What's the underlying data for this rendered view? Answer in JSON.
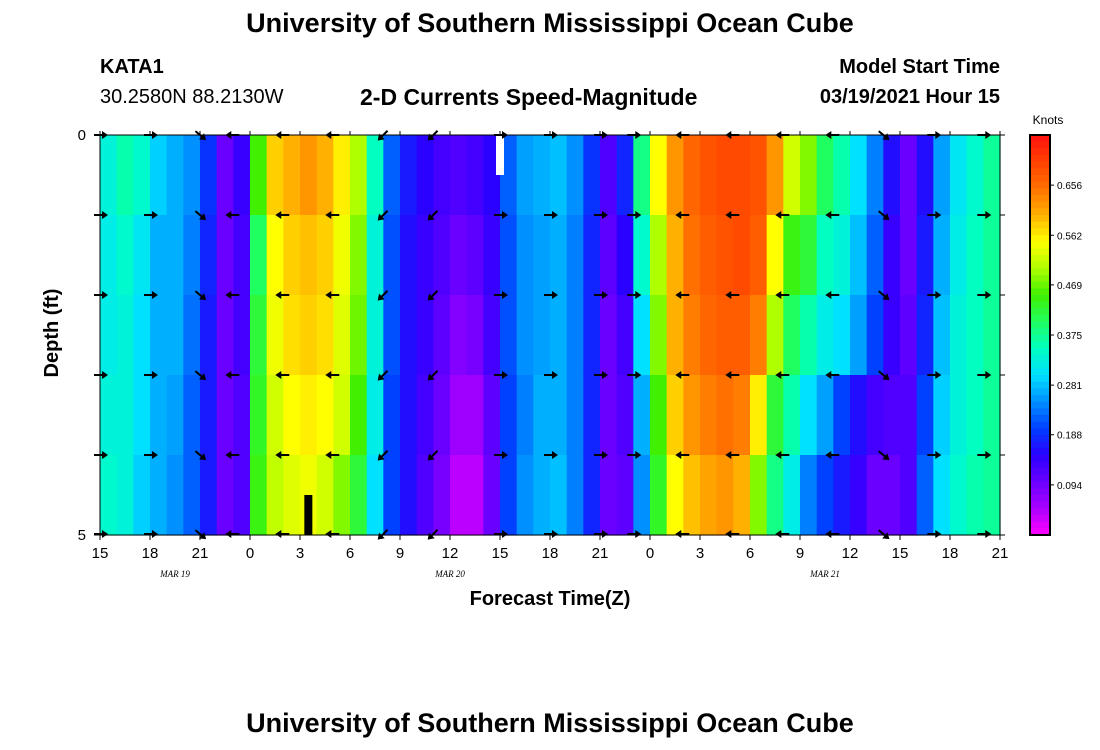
{
  "page": {
    "title": "University of Southern Mississippi Ocean Cube",
    "footer_title": "University of Southern Mississippi Ocean Cube",
    "station_id": "KATA1",
    "station_coords": "30.2580N 88.2130W",
    "model_start_label": "Model Start Time",
    "model_start_value": "03/19/2021 Hour 15"
  },
  "chart_data": {
    "type": "heatmap",
    "title": "2-D Currents Speed-Magnitude",
    "xlabel": "Forecast Time(Z)",
    "ylabel": "Depth (ft)",
    "x_tick_labels": [
      "15",
      "18",
      "21",
      "0",
      "3",
      "6",
      "9",
      "12",
      "15",
      "18",
      "21",
      "0",
      "3",
      "6",
      "9",
      "12",
      "15",
      "18",
      "21"
    ],
    "x_tick_hours": [
      0,
      3,
      6,
      9,
      12,
      15,
      18,
      21,
      24,
      27,
      30,
      33,
      36,
      39,
      42,
      45,
      48,
      51,
      54
    ],
    "date_labels": [
      {
        "text": "MAR 19",
        "hour": 4.5
      },
      {
        "text": "MAR 20",
        "hour": 21
      },
      {
        "text": "MAR 21",
        "hour": 43.5
      }
    ],
    "xlim": [
      0,
      54
    ],
    "y_tick_labels": [
      "0",
      "5"
    ],
    "ylim": [
      0,
      5
    ],
    "colorbar": {
      "title": "Knots",
      "ticks": [
        "0.656",
        "0.562",
        "0.469",
        "0.375",
        "0.281",
        "0.188",
        "0.094"
      ],
      "tick_values": [
        0.656,
        0.562,
        0.469,
        0.375,
        0.281,
        0.188,
        0.094
      ],
      "range": [
        0.0,
        0.75
      ],
      "colors": [
        "#ff00ff",
        "#aa00ff",
        "#6a00ff",
        "#2a00ff",
        "#0040ff",
        "#0090ff",
        "#00e0ff",
        "#00ffc0",
        "#20ff60",
        "#40f000",
        "#b0ff00",
        "#ffff00",
        "#ffb000",
        "#ff7000",
        "#ff4000",
        "#ff1010"
      ]
    },
    "depth_rows": [
      0.5,
      1.5,
      2.5,
      3.5,
      4.5
    ],
    "columns": [
      {
        "hour": 0,
        "speed": [
          0.33,
          0.32,
          0.32,
          0.33,
          0.34
        ]
      },
      {
        "hour": 1,
        "speed": [
          0.36,
          0.34,
          0.33,
          0.33,
          0.33
        ]
      },
      {
        "hour": 2,
        "speed": [
          0.34,
          0.31,
          0.3,
          0.3,
          0.29
        ]
      },
      {
        "hour": 3,
        "speed": [
          0.29,
          0.27,
          0.27,
          0.27,
          0.27
        ]
      },
      {
        "hour": 4,
        "speed": [
          0.27,
          0.27,
          0.27,
          0.26,
          0.25
        ]
      },
      {
        "hour": 5,
        "speed": [
          0.25,
          0.24,
          0.23,
          0.22,
          0.22
        ]
      },
      {
        "hour": 6,
        "speed": [
          0.19,
          0.18,
          0.17,
          0.17,
          0.17
        ]
      },
      {
        "hour": 7,
        "speed": [
          0.1,
          0.1,
          0.1,
          0.1,
          0.1
        ]
      },
      {
        "hour": 8,
        "speed": [
          0.14,
          0.13,
          0.13,
          0.12,
          0.12
        ]
      },
      {
        "hour": 9,
        "speed": [
          0.45,
          0.4,
          0.42,
          0.43,
          0.44
        ]
      },
      {
        "hour": 10,
        "speed": [
          0.58,
          0.55,
          0.54,
          0.52,
          0.51
        ]
      },
      {
        "hour": 11,
        "speed": [
          0.6,
          0.58,
          0.57,
          0.55,
          0.53
        ]
      },
      {
        "hour": 12,
        "speed": [
          0.62,
          0.59,
          0.58,
          0.56,
          0.54
        ]
      },
      {
        "hour": 13,
        "speed": [
          0.6,
          0.58,
          0.57,
          0.55,
          0.52
        ]
      },
      {
        "hour": 14,
        "speed": [
          0.56,
          0.54,
          0.53,
          0.52,
          0.48
        ]
      },
      {
        "hour": 15,
        "speed": [
          0.5,
          0.48,
          0.47,
          0.45,
          0.42
        ]
      },
      {
        "hour": 16,
        "speed": [
          0.35,
          0.33,
          0.33,
          0.32,
          0.3
        ]
      },
      {
        "hour": 17,
        "speed": [
          0.22,
          0.21,
          0.21,
          0.2,
          0.2
        ]
      },
      {
        "hour": 18,
        "speed": [
          0.17,
          0.16,
          0.16,
          0.16,
          0.16
        ]
      },
      {
        "hour": 19,
        "speed": [
          0.15,
          0.14,
          0.14,
          0.13,
          0.12
        ]
      },
      {
        "hour": 20,
        "speed": [
          0.13,
          0.12,
          0.11,
          0.1,
          0.09
        ]
      },
      {
        "hour": 21,
        "speed": [
          0.12,
          0.1,
          0.08,
          0.06,
          0.04
        ]
      },
      {
        "hour": 22,
        "speed": [
          0.13,
          0.11,
          0.09,
          0.06,
          0.04
        ]
      },
      {
        "hour": 23,
        "speed": [
          0.15,
          0.14,
          0.13,
          0.11,
          0.1
        ]
      },
      {
        "hour": 24,
        "speed": [
          0.22,
          0.21,
          0.21,
          0.2,
          0.2
        ]
      },
      {
        "hour": 25,
        "speed": [
          0.26,
          0.25,
          0.25,
          0.24,
          0.25
        ]
      },
      {
        "hour": 26,
        "speed": [
          0.27,
          0.26,
          0.26,
          0.27,
          0.27
        ]
      },
      {
        "hour": 27,
        "speed": [
          0.28,
          0.27,
          0.27,
          0.27,
          0.28
        ]
      },
      {
        "hour": 28,
        "speed": [
          0.25,
          0.24,
          0.24,
          0.24,
          0.24
        ]
      },
      {
        "hour": 29,
        "speed": [
          0.19,
          0.18,
          0.18,
          0.18,
          0.18
        ]
      },
      {
        "hour": 30,
        "speed": [
          0.12,
          0.11,
          0.1,
          0.1,
          0.1
        ]
      },
      {
        "hour": 31,
        "speed": [
          0.18,
          0.15,
          0.13,
          0.12,
          0.11
        ]
      },
      {
        "hour": 32,
        "speed": [
          0.38,
          0.34,
          0.3,
          0.27,
          0.25
        ]
      },
      {
        "hour": 33,
        "speed": [
          0.55,
          0.5,
          0.48,
          0.45,
          0.43
        ]
      },
      {
        "hour": 34,
        "speed": [
          0.62,
          0.6,
          0.6,
          0.58,
          0.55
        ]
      },
      {
        "hour": 35,
        "speed": [
          0.66,
          0.65,
          0.64,
          0.62,
          0.59
        ]
      },
      {
        "hour": 36,
        "speed": [
          0.68,
          0.67,
          0.66,
          0.64,
          0.61
        ]
      },
      {
        "hour": 37,
        "speed": [
          0.69,
          0.68,
          0.67,
          0.65,
          0.62
        ]
      },
      {
        "hour": 38,
        "speed": [
          0.69,
          0.69,
          0.67,
          0.64,
          0.6
        ]
      },
      {
        "hour": 39,
        "speed": [
          0.68,
          0.67,
          0.64,
          0.56,
          0.48
        ]
      },
      {
        "hour": 40,
        "speed": [
          0.62,
          0.55,
          0.5,
          0.42,
          0.38
        ]
      },
      {
        "hour": 41,
        "speed": [
          0.52,
          0.44,
          0.4,
          0.36,
          0.32
        ]
      },
      {
        "hour": 42,
        "speed": [
          0.48,
          0.42,
          0.36,
          0.3,
          0.24
        ]
      },
      {
        "hour": 43,
        "speed": [
          0.4,
          0.35,
          0.32,
          0.26,
          0.2
        ]
      },
      {
        "hour": 44,
        "speed": [
          0.36,
          0.33,
          0.3,
          0.2,
          0.17
        ]
      },
      {
        "hour": 45,
        "speed": [
          0.3,
          0.28,
          0.26,
          0.16,
          0.14
        ]
      },
      {
        "hour": 46,
        "speed": [
          0.24,
          0.22,
          0.2,
          0.13,
          0.1
        ]
      },
      {
        "hour": 47,
        "speed": [
          0.16,
          0.14,
          0.14,
          0.12,
          0.1
        ]
      },
      {
        "hour": 48,
        "speed": [
          0.1,
          0.1,
          0.11,
          0.12,
          0.12
        ]
      },
      {
        "hour": 49,
        "speed": [
          0.16,
          0.17,
          0.18,
          0.2,
          0.22
        ]
      },
      {
        "hour": 50,
        "speed": [
          0.26,
          0.27,
          0.28,
          0.29,
          0.3
        ]
      },
      {
        "hour": 51,
        "speed": [
          0.31,
          0.32,
          0.33,
          0.33,
          0.34
        ]
      },
      {
        "hour": 52,
        "speed": [
          0.34,
          0.35,
          0.35,
          0.35,
          0.36
        ]
      },
      {
        "hour": 53,
        "speed": [
          0.37,
          0.37,
          0.37,
          0.37,
          0.37
        ]
      }
    ],
    "arrow_hours": [
      0,
      3,
      6,
      8,
      11,
      14,
      17,
      20,
      24,
      27,
      30,
      32,
      35,
      38,
      41,
      44,
      47,
      50,
      53
    ],
    "arrow_depths": [
      0,
      1,
      2,
      3,
      4,
      5
    ],
    "arrow_directions": [
      "E",
      "E",
      "SE",
      "W",
      "W",
      "W",
      "SW",
      "SW",
      "E",
      "E",
      "E",
      "E",
      "W",
      "W",
      "W",
      "W",
      "SE",
      "E",
      "E"
    ],
    "markers": [
      {
        "label": "model start",
        "hour": 24,
        "depth_from": 0,
        "depth_to": 0.5,
        "color": "#ffffff"
      },
      {
        "label": "current time",
        "hour": 12.5,
        "depth_from": 4.5,
        "depth_to": 5,
        "color": "#000000"
      }
    ]
  }
}
